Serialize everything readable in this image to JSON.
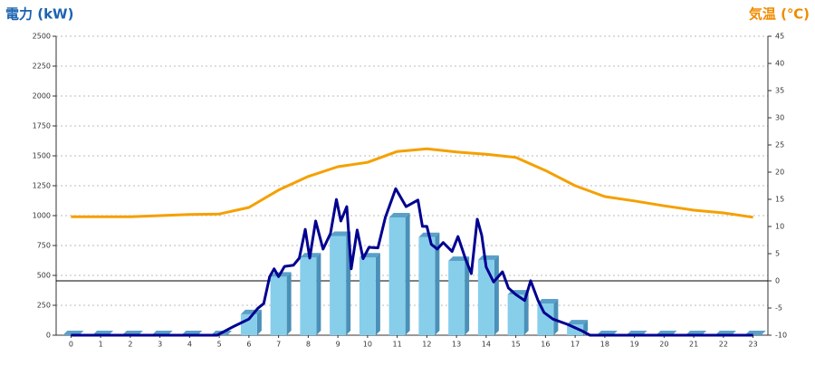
{
  "chart_data": {
    "type": "bar",
    "y_label": "電力 (kW)",
    "y2_label": "気温 (℃)",
    "categories": [
      "0",
      "1",
      "2",
      "3",
      "4",
      "5",
      "6",
      "7",
      "8",
      "9",
      "10",
      "11",
      "12",
      "13",
      "14",
      "15",
      "16",
      "17",
      "18",
      "19",
      "20",
      "21",
      "22",
      "23"
    ],
    "ylim": [
      0,
      2500
    ],
    "yticks": [
      0,
      250,
      500,
      750,
      1000,
      1250,
      1500,
      1750,
      2000,
      2250,
      2500
    ],
    "y2lim": [
      -10,
      45
    ],
    "y2ticks": [
      -10,
      -5,
      0,
      5,
      10,
      15,
      20,
      25,
      30,
      35,
      40,
      45
    ],
    "grid": true,
    "series": [
      {
        "type": "bar",
        "color": "#87ceeb",
        "values": [
          0,
          0,
          0,
          0,
          0,
          0,
          175,
          490,
          650,
          830,
          650,
          985,
          820,
          620,
          630,
          340,
          265,
          90,
          0,
          0,
          0,
          0,
          0,
          0
        ]
      },
      {
        "type": "line",
        "color": "#000090",
        "x": [
          0,
          4.93,
          5.5,
          6.0,
          6.3,
          6.5,
          6.7,
          6.85,
          7.0,
          7.2,
          7.5,
          7.7,
          7.9,
          8.05,
          8.25,
          8.5,
          8.75,
          8.95,
          9.1,
          9.3,
          9.45,
          9.65,
          9.85,
          10.05,
          10.35,
          10.6,
          10.95,
          11.3,
          11.7,
          11.85,
          12.0,
          12.15,
          12.35,
          12.55,
          12.85,
          13.05,
          13.3,
          13.5,
          13.7,
          13.85,
          14.0,
          14.25,
          14.55,
          14.75,
          15.0,
          15.3,
          15.5,
          15.75,
          15.95,
          16.25,
          16.75,
          17.2,
          17.5,
          23
        ],
        "values": [
          0,
          0,
          75,
          135,
          225,
          265,
          490,
          555,
          490,
          575,
          585,
          645,
          885,
          645,
          955,
          720,
          850,
          1135,
          955,
          1075,
          555,
          880,
          640,
          735,
          730,
          985,
          1225,
          1075,
          1130,
          910,
          910,
          760,
          720,
          775,
          700,
          825,
          640,
          515,
          970,
          835,
          570,
          445,
          530,
          395,
          340,
          290,
          455,
          290,
          190,
          135,
          90,
          40,
          0,
          0
        ]
      },
      {
        "type": "line",
        "axis": "y2",
        "color": "#f5a000",
        "values": [
          11.8,
          11.8,
          11.8,
          12,
          12.2,
          12.3,
          13.5,
          16.7,
          19.2,
          21,
          21.8,
          23.8,
          24.3,
          23.7,
          23.3,
          22.7,
          20.3,
          17.5,
          15.5,
          14.7,
          13.8,
          13,
          12.5,
          11.7
        ]
      }
    ]
  }
}
